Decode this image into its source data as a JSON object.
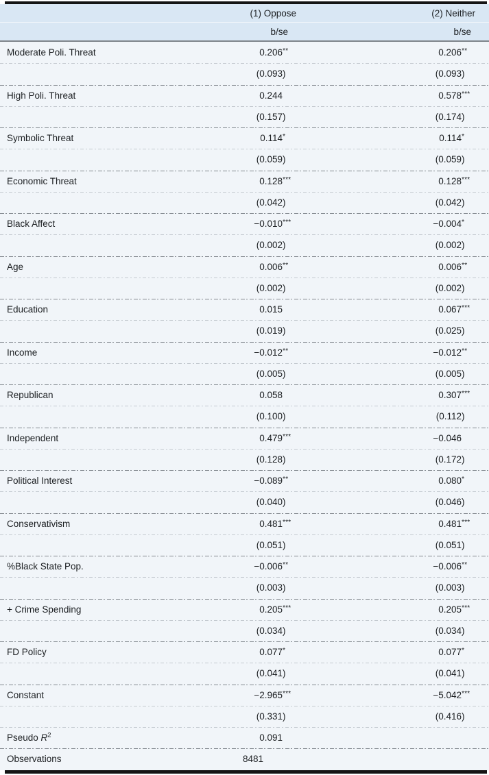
{
  "table": {
    "header": {
      "col1": "(1) Oppose",
      "col2": "(2) Neither",
      "bse": "b/se"
    },
    "rows": [
      {
        "label": "Moderate Poli. Threat",
        "b1": "0.206",
        "s1": "**",
        "se1": "(0.093)",
        "b2": "0.206",
        "s2": "**",
        "se2": "(0.093)"
      },
      {
        "label": "High Poli. Threat",
        "b1": "0.244",
        "s1": "",
        "se1": "(0.157)",
        "b2": "0.578",
        "s2": "***",
        "se2": "(0.174)"
      },
      {
        "label": "Symbolic Threat",
        "b1": "0.114",
        "s1": "*",
        "se1": "(0.059)",
        "b2": "0.114",
        "s2": "*",
        "se2": "(0.059)"
      },
      {
        "label": "Economic Threat",
        "b1": "0.128",
        "s1": "***",
        "se1": "(0.042)",
        "b2": "0.128",
        "s2": "***",
        "se2": "(0.042)"
      },
      {
        "label": "Black Affect",
        "b1": "−0.010",
        "s1": "***",
        "se1": "(0.002)",
        "b2": "−0.004",
        "s2": "*",
        "se2": "(0.002)"
      },
      {
        "label": "Age",
        "b1": "0.006",
        "s1": "**",
        "se1": "(0.002)",
        "b2": "0.006",
        "s2": "**",
        "se2": "(0.002)"
      },
      {
        "label": "Education",
        "b1": "0.015",
        "s1": "",
        "se1": "(0.019)",
        "b2": "0.067",
        "s2": "***",
        "se2": "(0.025)"
      },
      {
        "label": "Income",
        "b1": "−0.012",
        "s1": "**",
        "se1": "(0.005)",
        "b2": "−0.012",
        "s2": "**",
        "se2": "(0.005)"
      },
      {
        "label": "Republican",
        "b1": "0.058",
        "s1": "",
        "se1": "(0.100)",
        "b2": "0.307",
        "s2": "***",
        "se2": "(0.112)"
      },
      {
        "label": "Independent",
        "b1": "0.479",
        "s1": "***",
        "se1": "(0.128)",
        "b2": "−0.046",
        "s2": "",
        "se2": "(0.172)"
      },
      {
        "label": "Political Interest",
        "b1": "−0.089",
        "s1": "**",
        "se1": "(0.040)",
        "b2": "0.080",
        "s2": "*",
        "se2": "(0.046)"
      },
      {
        "label": "Conservativism",
        "b1": "0.481",
        "s1": "***",
        "se1": "(0.051)",
        "b2": "0.481",
        "s2": "***",
        "se2": "(0.051)"
      },
      {
        "label": "%Black State Pop.",
        "b1": "−0.006",
        "s1": "**",
        "se1": "(0.003)",
        "b2": "−0.006",
        "s2": "**",
        "se2": "(0.003)"
      },
      {
        "label": "+ Crime Spending",
        "b1": "0.205",
        "s1": "***",
        "se1": "(0.034)",
        "b2": "0.205",
        "s2": "***",
        "se2": "(0.034)"
      },
      {
        "label": "FD Policy",
        "b1": "0.077",
        "s1": "*",
        "se1": "(0.041)",
        "b2": "0.077",
        "s2": "*",
        "se2": "(0.041)"
      },
      {
        "label": "Constant",
        "b1": "−2.965",
        "s1": "***",
        "se1": "(0.331)",
        "b2": "−5.042",
        "s2": "***",
        "se2": "(0.416)"
      }
    ],
    "stats": [
      {
        "label": "Pseudo R^2",
        "value": "0.091"
      },
      {
        "label": "Observations",
        "value": "8481"
      }
    ],
    "colors": {
      "header_bg": "#d9e7f4",
      "body_bg": "#f1f5f9",
      "top_bottom_rule": "#141414",
      "header_rule": "#7e848a"
    }
  }
}
